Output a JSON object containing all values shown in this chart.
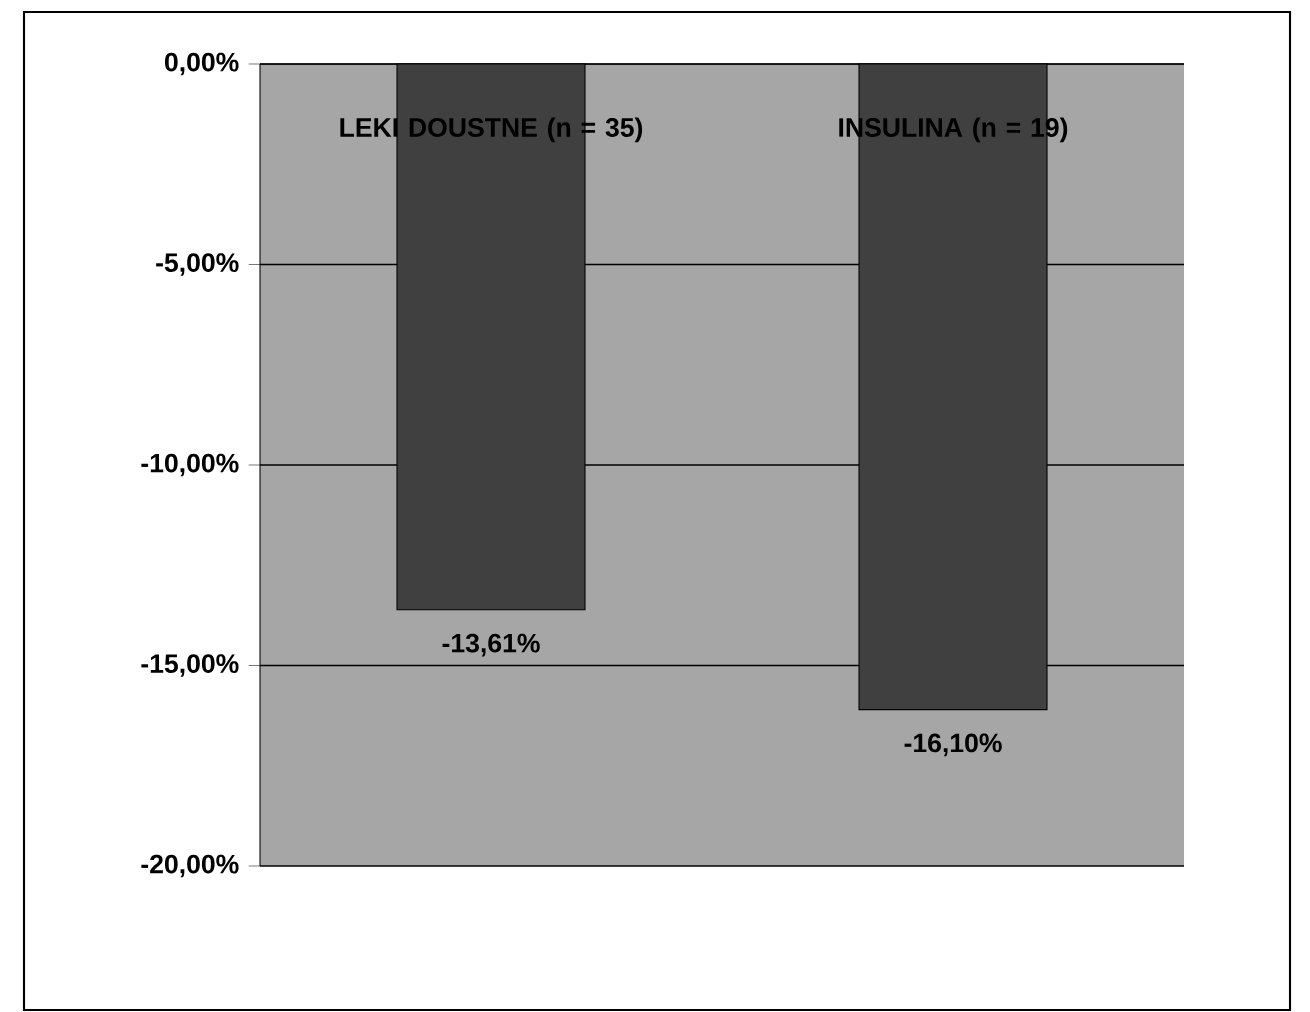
{
  "chart_data": {
    "type": "bar",
    "categories": [
      "LEKI DOUSTNE (n = 35)",
      "INSULINA (n = 19)"
    ],
    "values": [
      -13.61,
      -16.1
    ],
    "value_labels": [
      "-13,61%",
      "-16,10%"
    ],
    "color": "#404040",
    "ylim": [
      -20,
      0
    ],
    "yticks": [
      {
        "value": 0,
        "label": "0,00%"
      },
      {
        "value": -5,
        "label": "-5,00%"
      },
      {
        "value": -10,
        "label": "-10,00%"
      },
      {
        "value": -15,
        "label": "-15,00%"
      },
      {
        "value": -20,
        "label": "-20,00%"
      }
    ],
    "grid": "y"
  }
}
